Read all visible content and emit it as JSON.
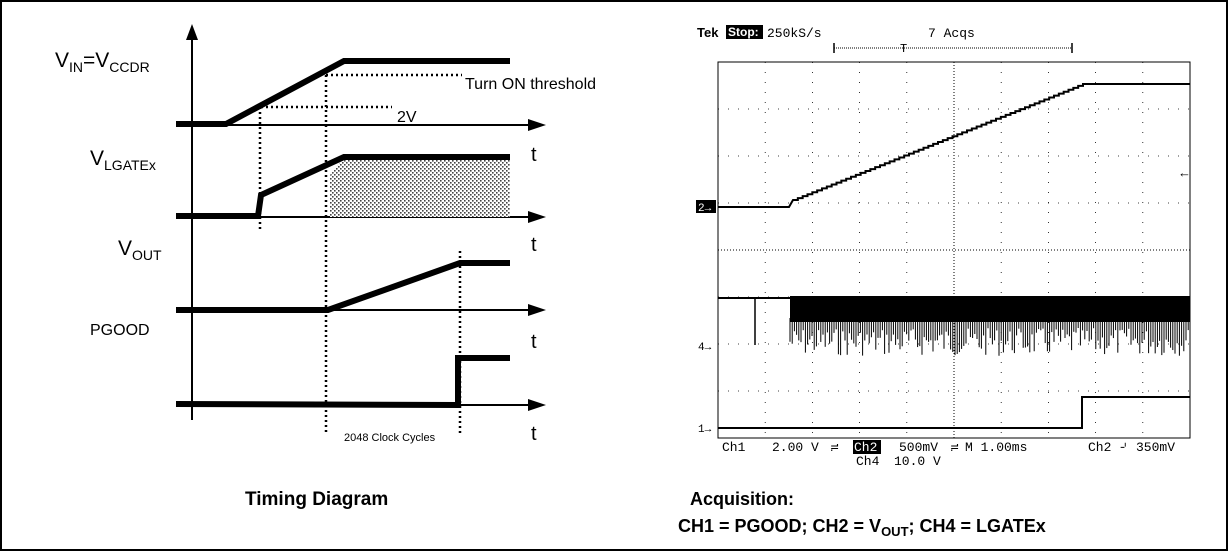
{
  "timing": {
    "vin_label": "V",
    "vin_sub1": "IN",
    "vin_eq": "=V",
    "vin_sub2": "CCDR",
    "turn_on_label": "Turn ON threshold",
    "two_volt_label": "2V",
    "vlgate_label": "V",
    "vlgate_sub": "LGATEx",
    "vout_label": "V",
    "vout_sub": "OUT",
    "pgood_label": "PGOOD",
    "time_axis_label": "t",
    "clock_cycles_label": "2048 Clock Cycles",
    "caption": "Timing Diagram"
  },
  "scope": {
    "brand": "Tek",
    "status": "Stop:",
    "sample_rate": "250kS/s",
    "acquisitions": "7 Acqs",
    "trigger_marker": "T",
    "ch2_marker": "2→",
    "ch4_marker": "4→",
    "ch1_marker": "1→",
    "ch1_scale_name": "Ch1",
    "ch1_scale_value": "2.00 V",
    "ch2_scale_name": "Ch2",
    "ch2_scale_value": "500mV",
    "ch4_scale_name": "Ch4",
    "ch4_scale_value": "10.0 V",
    "timebase": "M 1.00ms",
    "trigger_source": "Ch2",
    "trigger_level": "350mV"
  },
  "acquisition": {
    "title": "Acquisition:",
    "p1": "CH1 = PGOOD; CH2 = V",
    "p1_sub": "OUT",
    "p2": "; CH4 = LGATEx"
  }
}
